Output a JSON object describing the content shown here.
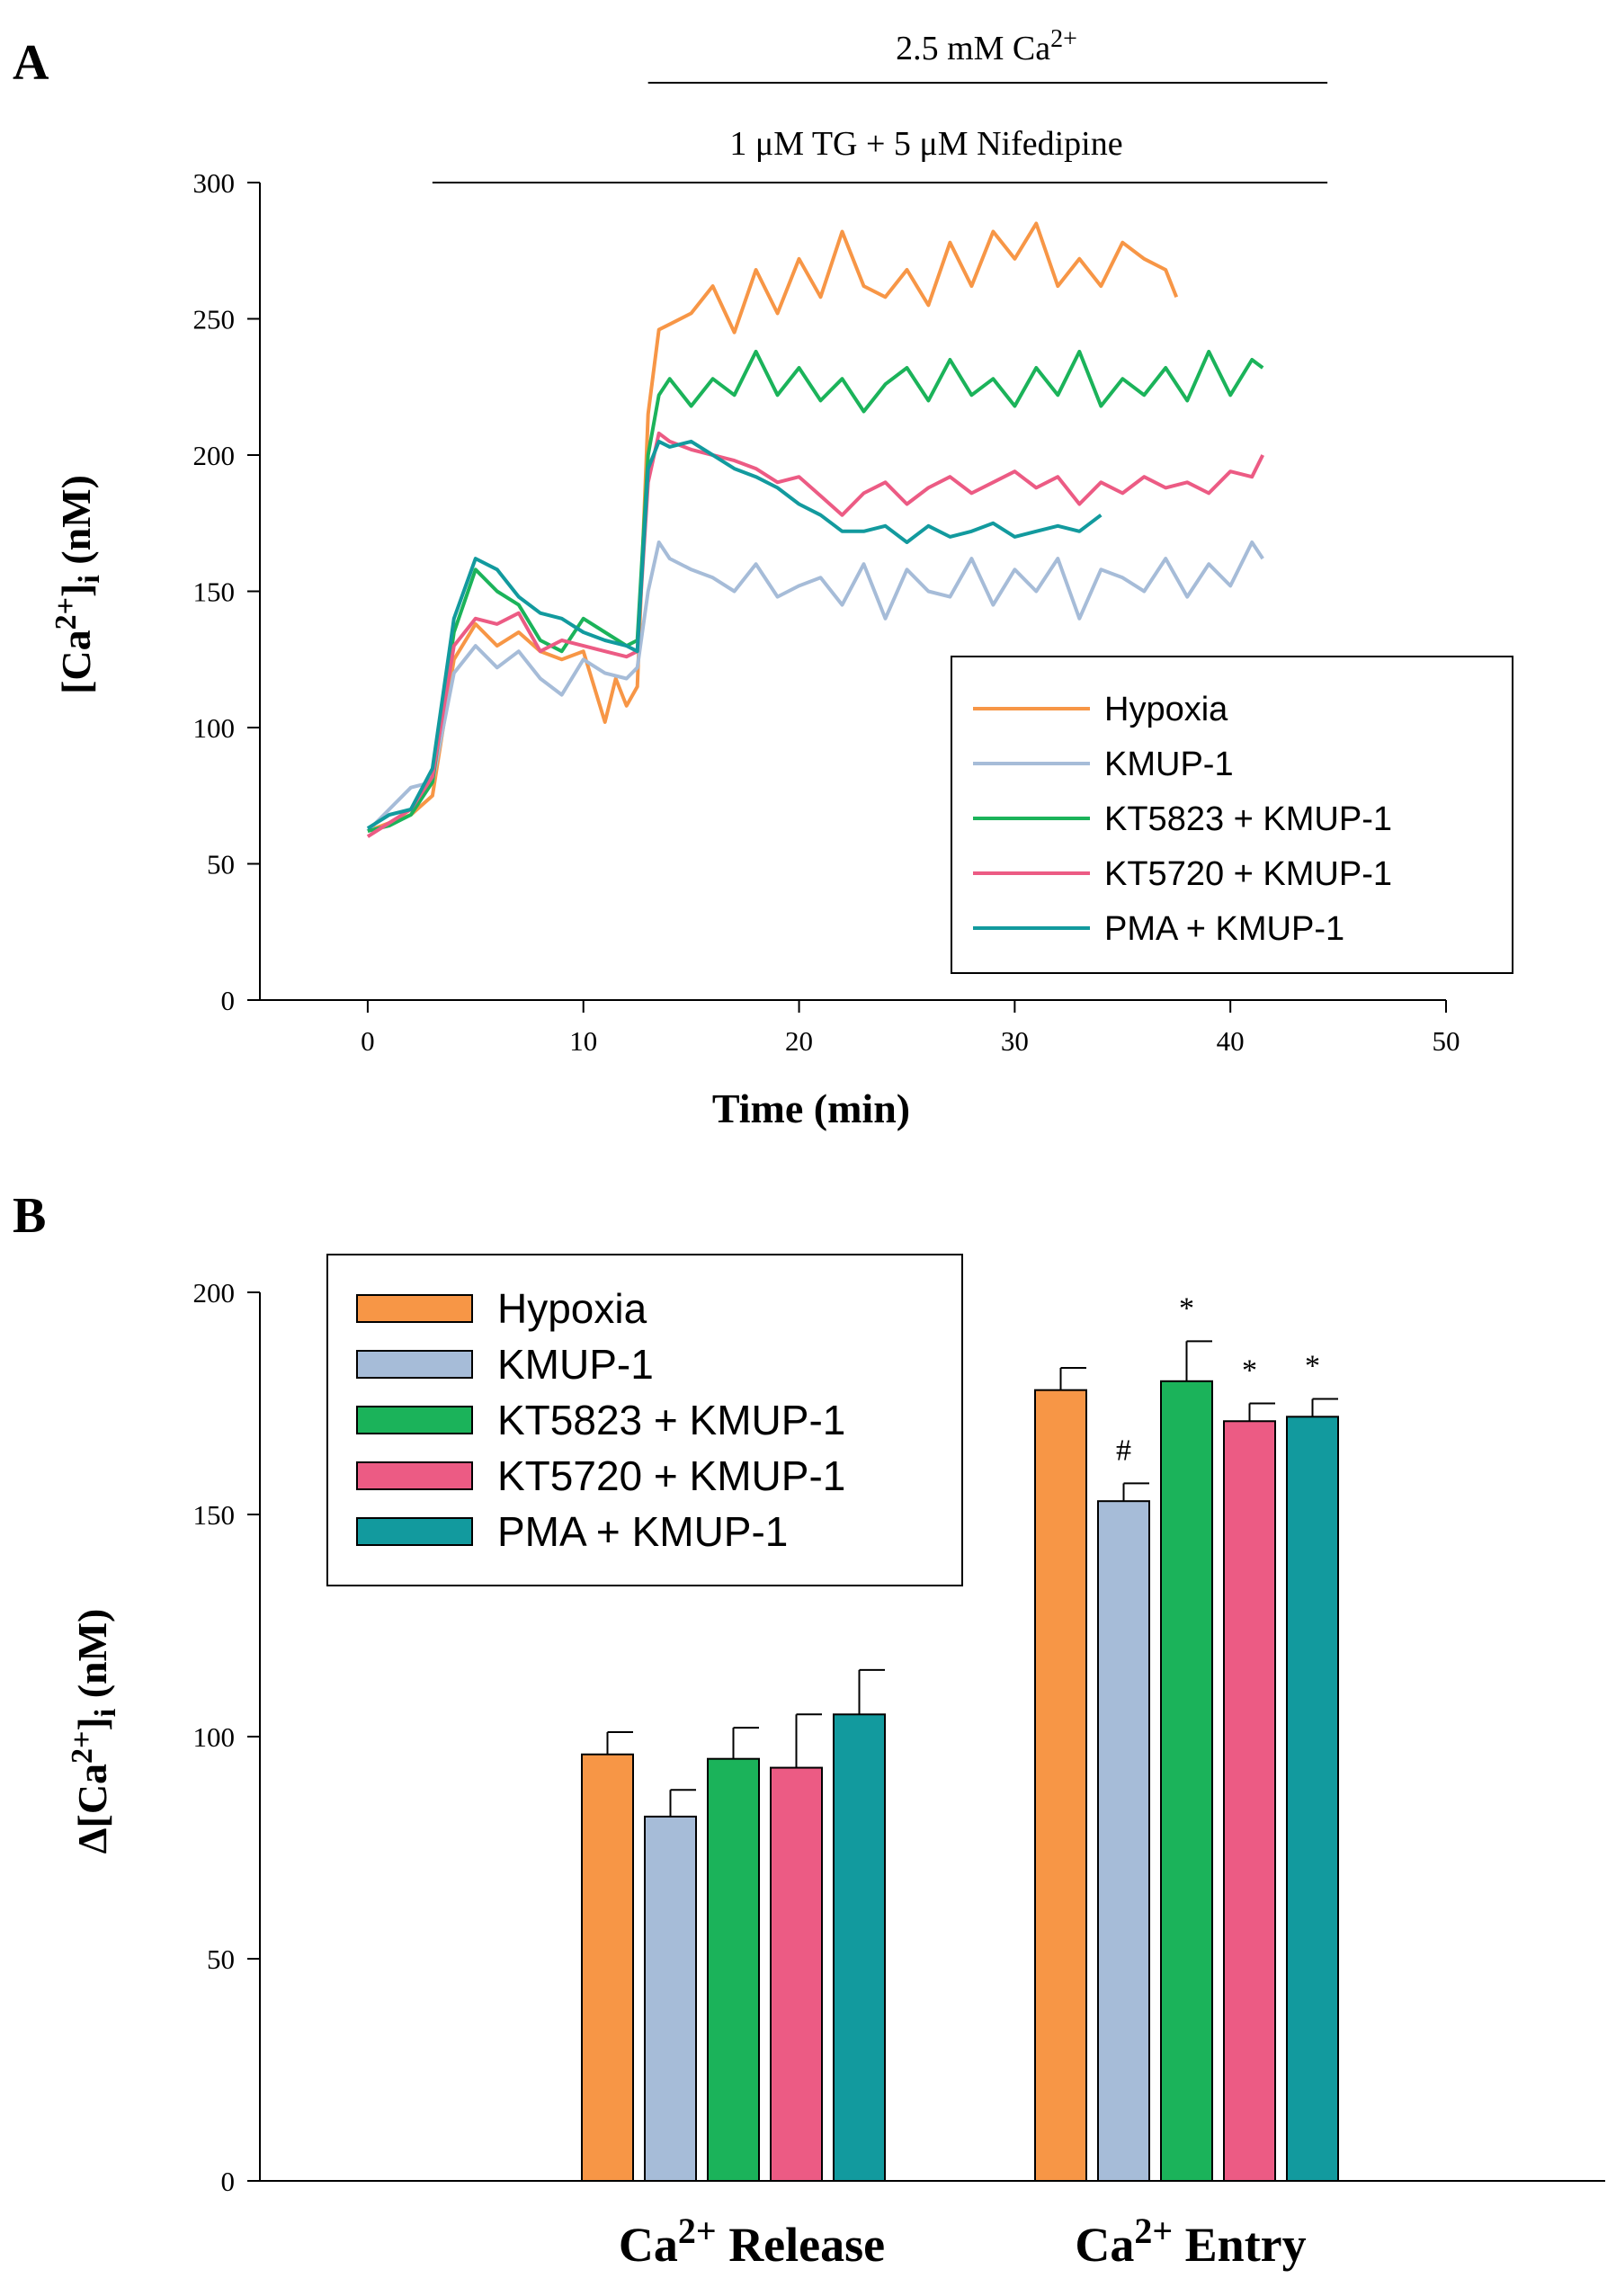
{
  "colors": {
    "Hypoxia": "#f79646",
    "KMUP-1": "#a6bcd8",
    "KT5823 + KMUP-1": "#1bb35a",
    "KT5720 + KMUP-1": "#ec5b84",
    "PMA + KMUP-1": "#129a9e"
  },
  "chart_data": [
    {
      "panel": "A",
      "type": "line",
      "title": "",
      "xlabel": "Time (min)",
      "ylabel": "[Ca2+]i (nM)",
      "ylabel_parts": {
        "pre": "[Ca",
        "sup": "2+",
        "close": "]",
        "sub": "i",
        "post": " (nM)"
      },
      "xlim": [
        -5,
        50
      ],
      "ylim": [
        0,
        300
      ],
      "xticks": [
        0,
        10,
        20,
        30,
        40,
        50
      ],
      "yticks": [
        0,
        50,
        100,
        150,
        200,
        250,
        300
      ],
      "annotations": [
        {
          "text_pre": "2.5 mM Ca",
          "text_sup": "2+",
          "x_range": [
            13,
            44.5
          ]
        },
        {
          "text": "1 μM TG + 5 μM Nifedipine",
          "x_range": [
            3,
            44.5
          ]
        }
      ],
      "legend_position": "lower-right",
      "series": [
        {
          "name": "Hypoxia",
          "x": [
            0,
            1,
            2,
            3,
            4,
            5,
            6,
            7,
            8,
            9,
            10,
            11,
            11.5,
            12,
            12.5,
            13,
            13.5,
            14,
            15,
            16,
            17,
            18,
            19,
            20,
            21,
            22,
            23,
            24,
            25,
            26,
            27,
            28,
            29,
            30,
            31,
            32,
            33,
            34,
            35,
            36,
            37,
            37.5
          ],
          "y": [
            62,
            65,
            68,
            75,
            125,
            138,
            130,
            135,
            128,
            125,
            128,
            102,
            118,
            108,
            115,
            215,
            246,
            248,
            252,
            262,
            245,
            268,
            252,
            272,
            258,
            282,
            262,
            258,
            268,
            255,
            278,
            262,
            282,
            272,
            285,
            262,
            272,
            262,
            278,
            272,
            268,
            258
          ]
        },
        {
          "name": "KMUP-1",
          "x": [
            0,
            1,
            2,
            3,
            4,
            5,
            6,
            7,
            8,
            9,
            10,
            11,
            12,
            12.5,
            13,
            13.5,
            14,
            15,
            16,
            17,
            18,
            19,
            20,
            21,
            22,
            23,
            24,
            25,
            26,
            27,
            28,
            29,
            30,
            31,
            32,
            33,
            34,
            35,
            36,
            37,
            38,
            39,
            40,
            41,
            41.5
          ],
          "y": [
            62,
            70,
            78,
            80,
            120,
            130,
            122,
            128,
            118,
            112,
            125,
            120,
            118,
            122,
            150,
            168,
            162,
            158,
            155,
            150,
            160,
            148,
            152,
            155,
            145,
            160,
            140,
            158,
            150,
            148,
            162,
            145,
            158,
            150,
            162,
            140,
            158,
            155,
            150,
            162,
            148,
            160,
            152,
            168,
            162
          ]
        },
        {
          "name": "KT5823 + KMUP-1",
          "x": [
            0,
            1,
            2,
            3,
            4,
            5,
            6,
            7,
            8,
            9,
            10,
            11,
            12,
            12.5,
            13,
            13.5,
            14,
            15,
            16,
            17,
            18,
            19,
            20,
            21,
            22,
            23,
            24,
            25,
            26,
            27,
            28,
            29,
            30,
            31,
            32,
            33,
            34,
            35,
            36,
            37,
            38,
            39,
            40,
            41,
            41.5
          ],
          "y": [
            62,
            64,
            68,
            80,
            135,
            158,
            150,
            145,
            132,
            128,
            140,
            135,
            130,
            132,
            200,
            222,
            228,
            218,
            228,
            222,
            238,
            222,
            232,
            220,
            228,
            216,
            226,
            232,
            220,
            235,
            222,
            228,
            218,
            232,
            222,
            238,
            218,
            228,
            222,
            232,
            220,
            238,
            222,
            235,
            232
          ]
        },
        {
          "name": "KT5720 + KMUP-1",
          "x": [
            0,
            1,
            2,
            3,
            4,
            5,
            6,
            7,
            8,
            9,
            10,
            11,
            12,
            12.5,
            13,
            13.5,
            14,
            15,
            16,
            17,
            18,
            19,
            20,
            21,
            22,
            23,
            24,
            25,
            26,
            27,
            28,
            29,
            30,
            31,
            32,
            33,
            34,
            35,
            36,
            37,
            38,
            39,
            40,
            41,
            41.5
          ],
          "y": [
            60,
            65,
            70,
            82,
            130,
            140,
            138,
            142,
            128,
            132,
            130,
            128,
            126,
            128,
            190,
            208,
            205,
            202,
            200,
            198,
            195,
            190,
            192,
            185,
            178,
            186,
            190,
            182,
            188,
            192,
            186,
            190,
            194,
            188,
            192,
            182,
            190,
            186,
            192,
            188,
            190,
            186,
            194,
            192,
            200
          ]
        },
        {
          "name": "PMA + KMUP-1",
          "x": [
            0,
            1,
            2,
            3,
            4,
            5,
            6,
            7,
            8,
            9,
            10,
            11,
            12,
            12.5,
            13,
            13.5,
            14,
            15,
            16,
            17,
            18,
            19,
            20,
            21,
            22,
            23,
            24,
            25,
            26,
            27,
            28,
            29,
            30,
            31,
            32,
            33,
            34
          ],
          "y": [
            63,
            68,
            70,
            85,
            140,
            162,
            158,
            148,
            142,
            140,
            135,
            132,
            130,
            128,
            195,
            205,
            203,
            205,
            200,
            195,
            192,
            188,
            182,
            178,
            172,
            172,
            174,
            168,
            174,
            170,
            172,
            175,
            170,
            172,
            174,
            172,
            178
          ]
        }
      ]
    },
    {
      "panel": "B",
      "type": "bar",
      "title": "",
      "xlabel": "",
      "ylabel": "Δ[Ca2+]i (nM)",
      "ylabel_parts": {
        "pre": "Δ[Ca",
        "sup": "2+",
        "close": "]",
        "sub": "i",
        "post": " (nM)"
      },
      "ylim": [
        0,
        200
      ],
      "yticks": [
        0,
        50,
        100,
        150,
        200
      ],
      "categories": [
        "Ca2+ Release",
        "Ca2+ Entry"
      ],
      "category_label_parts": [
        {
          "pre": "Ca",
          "sup": "2+",
          "post": " Release"
        },
        {
          "pre": "Ca",
          "sup": "2+",
          "post": " Entry"
        }
      ],
      "legend_position": "top-left",
      "series": [
        {
          "name": "Hypoxia",
          "values": [
            96,
            178
          ],
          "errors": [
            5,
            5
          ],
          "marks": [
            "",
            ""
          ]
        },
        {
          "name": "KMUP-1",
          "values": [
            82,
            153
          ],
          "errors": [
            6,
            4
          ],
          "marks": [
            "",
            "#"
          ]
        },
        {
          "name": "KT5823 + KMUP-1",
          "values": [
            95,
            180
          ],
          "errors": [
            7,
            9
          ],
          "marks": [
            "",
            "*"
          ]
        },
        {
          "name": "KT5720 + KMUP-1",
          "values": [
            93,
            171
          ],
          "errors": [
            12,
            4
          ],
          "marks": [
            "",
            "*"
          ]
        },
        {
          "name": "PMA + KMUP-1",
          "values": [
            105,
            172
          ],
          "errors": [
            10,
            4
          ],
          "marks": [
            "",
            "*"
          ]
        }
      ]
    }
  ],
  "labels": {
    "panel_a": "A",
    "panel_b": "B"
  }
}
